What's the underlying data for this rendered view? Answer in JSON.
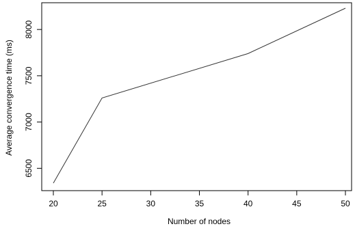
{
  "chart_data": {
    "type": "line",
    "xlabel": "Number of nodes",
    "ylabel": "Average convergence time (ms)",
    "x": [
      20,
      25,
      40,
      50
    ],
    "series": [
      {
        "values": [
          6340,
          7260,
          7740,
          8230
        ]
      }
    ],
    "xlim": [
      20,
      50
    ],
    "ylim": [
      6340,
      8230
    ],
    "x_ticks": [
      "20",
      "25",
      "30",
      "35",
      "40",
      "45",
      "50"
    ],
    "y_ticks": [
      "6500",
      "7000",
      "7500",
      "8000"
    ],
    "grid": false,
    "legend": "none"
  }
}
